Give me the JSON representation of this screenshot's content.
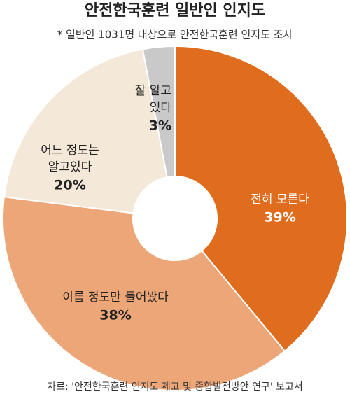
{
  "chart_data": {
    "type": "donut",
    "title": "안전한국훈련 일반인 인지도",
    "subtitle": "* 일반인 1031명 대상으로 안전한국훈련 인지도 조사",
    "source": "자료: '안전한국훈련 인지도 제고 및 종합발전방안 연구' 보고서",
    "categories": [
      [
        "전혀 모른다"
      ],
      [
        "이름 정도만 들어봤다"
      ],
      [
        "어느 정도는",
        "알고있다"
      ],
      [
        "잘 알고",
        "있다"
      ]
    ],
    "values": [
      39,
      38,
      20,
      3
    ],
    "value_labels": [
      "39%",
      "38%",
      "20%",
      "3%"
    ],
    "colors": [
      "#e06c1e",
      "#eca677",
      "#f4e8d8",
      "#c9c9c9"
    ],
    "label_colors": [
      "#ffffff",
      "#222222",
      "#222222",
      "#222222"
    ]
  }
}
